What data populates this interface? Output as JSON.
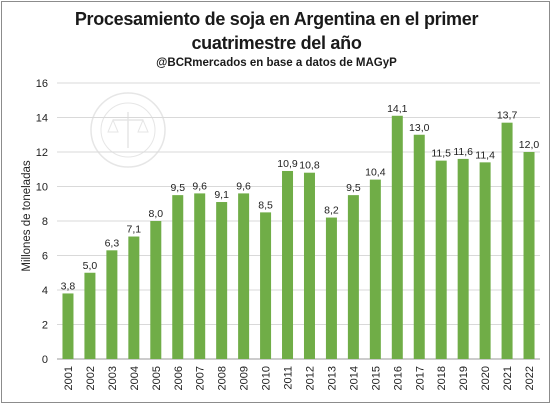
{
  "title_line1": "Procesamiento de soja en Argentina en el primer",
  "title_line2": "cuatrimestre del año",
  "subtitle": "@BCRmercados en base a datos de MAGyP",
  "watermark": {
    "text": "BOLSA DE COMERCIO DE ROSARIO"
  },
  "chart_data": {
    "type": "bar",
    "title": "Procesamiento de soja en Argentina en el primer cuatrimestre del año",
    "subtitle": "@BCRmercados en base a datos de MAGyP",
    "xlabel": "",
    "ylabel": "Millones de toneladas",
    "ylim": [
      0,
      16
    ],
    "yticks": [
      "0",
      "2",
      "4",
      "6",
      "8",
      "10",
      "12",
      "14",
      "16"
    ],
    "grid": true,
    "bar_color": "#70ad47",
    "categories": [
      "2001",
      "2002",
      "2003",
      "2004",
      "2005",
      "2006",
      "2007",
      "2008",
      "2009",
      "2010",
      "2011",
      "2012",
      "2013",
      "2014",
      "2015",
      "2016",
      "2017",
      "2018",
      "2019",
      "2020",
      "2021",
      "2022"
    ],
    "values": [
      3.8,
      5.0,
      6.3,
      7.1,
      8.0,
      9.5,
      9.6,
      9.1,
      9.6,
      8.5,
      10.9,
      10.8,
      8.2,
      9.5,
      10.4,
      14.1,
      13.0,
      11.5,
      11.6,
      11.4,
      13.7,
      12.0
    ],
    "labels": [
      "3,8",
      "5,0",
      "6,3",
      "7,1",
      "8,0",
      "9,5",
      "9,6",
      "9,1",
      "9,6",
      "8,5",
      "10,9",
      "10,8",
      "8,2",
      "9,5",
      "10,4",
      "14,1",
      "13,0",
      "11,5",
      "11,6",
      "11,4",
      "13,7",
      "12,0"
    ]
  }
}
